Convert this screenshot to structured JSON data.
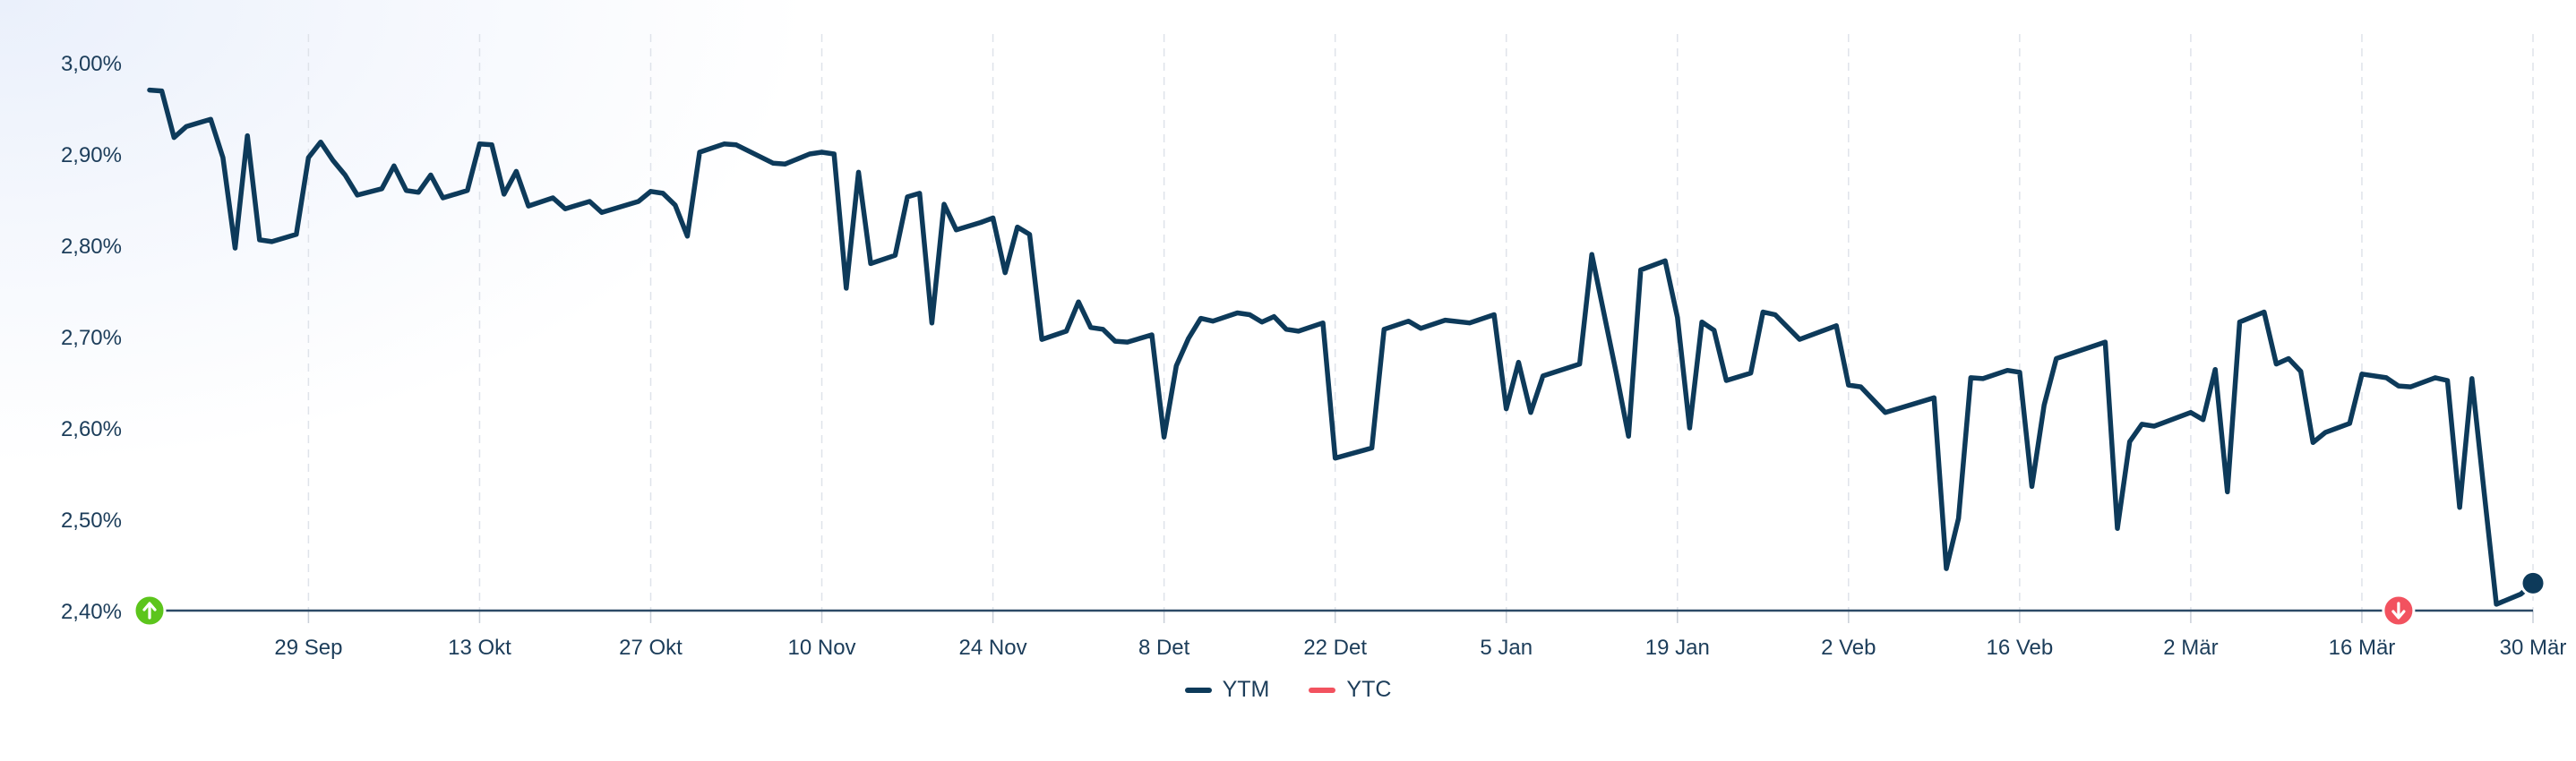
{
  "chart_data": {
    "type": "line",
    "y_tick_labels": [
      "3,00%",
      "2,90%",
      "2,80%",
      "2,70%",
      "2,60%",
      "2,50%",
      "2,40%"
    ],
    "y_ticks": [
      3.0,
      2.9,
      2.8,
      2.7,
      2.6,
      2.5,
      2.4
    ],
    "ylim": [
      2.4,
      3.0
    ],
    "x_tick_labels": [
      "29 Sep",
      "13 Okt",
      "27 Okt",
      "10 Nov",
      "24 Nov",
      "8 Det",
      "22 Det",
      "5 Jan",
      "19 Jan",
      "2 Veb",
      "16 Veb",
      "2 Mär",
      "16 Mär",
      "30 Mär"
    ],
    "x_ticks": [
      13,
      27,
      41,
      55,
      69,
      83,
      97,
      111,
      125,
      139,
      153,
      167,
      181,
      195
    ],
    "xlim": [
      0,
      195
    ],
    "grid": "vertical-dashed",
    "legend_position": "bottom-center",
    "series": [
      {
        "name": "YTM",
        "color": "#0d3a5a",
        "points": [
          [
            0,
            2.97
          ],
          [
            1,
            2.969
          ],
          [
            2,
            2.918
          ],
          [
            3,
            2.93
          ],
          [
            4,
            2.934
          ],
          [
            5,
            2.938
          ],
          [
            6,
            2.896
          ],
          [
            7,
            2.797
          ],
          [
            8,
            2.92
          ],
          [
            9,
            2.806
          ],
          [
            10,
            2.804
          ],
          [
            12,
            2.812
          ],
          [
            13,
            2.896
          ],
          [
            14,
            2.913
          ],
          [
            15,
            2.893
          ],
          [
            16,
            2.877
          ],
          [
            17,
            2.855
          ],
          [
            19,
            2.862
          ],
          [
            20,
            2.887
          ],
          [
            21,
            2.86
          ],
          [
            22,
            2.858
          ],
          [
            23,
            2.877
          ],
          [
            24,
            2.852
          ],
          [
            26,
            2.86
          ],
          [
            27,
            2.911
          ],
          [
            28,
            2.91
          ],
          [
            29,
            2.856
          ],
          [
            30,
            2.881
          ],
          [
            31,
            2.843
          ],
          [
            33,
            2.852
          ],
          [
            34,
            2.84
          ],
          [
            36,
            2.848
          ],
          [
            37,
            2.836
          ],
          [
            40,
            2.848
          ],
          [
            41,
            2.859
          ],
          [
            42,
            2.857
          ],
          [
            43,
            2.844
          ],
          [
            44,
            2.81
          ],
          [
            45,
            2.902
          ],
          [
            47,
            2.911
          ],
          [
            48,
            2.91
          ],
          [
            51,
            2.89
          ],
          [
            52,
            2.889
          ],
          [
            54,
            2.9
          ],
          [
            55,
            2.902
          ],
          [
            56,
            2.9
          ],
          [
            57,
            2.753
          ],
          [
            58,
            2.88
          ],
          [
            59,
            2.78
          ],
          [
            61,
            2.789
          ],
          [
            62,
            2.853
          ],
          [
            63,
            2.857
          ],
          [
            64,
            2.715
          ],
          [
            65,
            2.845
          ],
          [
            66,
            2.817
          ],
          [
            68,
            2.825
          ],
          [
            69,
            2.83
          ],
          [
            70,
            2.77
          ],
          [
            71,
            2.82
          ],
          [
            72,
            2.812
          ],
          [
            73,
            2.697
          ],
          [
            75,
            2.706
          ],
          [
            76,
            2.738
          ],
          [
            77,
            2.71
          ],
          [
            78,
            2.708
          ],
          [
            79,
            2.695
          ],
          [
            80,
            2.694
          ],
          [
            82,
            2.702
          ],
          [
            83,
            2.59
          ],
          [
            84,
            2.668
          ],
          [
            85,
            2.698
          ],
          [
            86,
            2.72
          ],
          [
            87,
            2.717
          ],
          [
            89,
            2.726
          ],
          [
            90,
            2.724
          ],
          [
            91,
            2.716
          ],
          [
            92,
            2.722
          ],
          [
            93,
            2.708
          ],
          [
            94,
            2.706
          ],
          [
            96,
            2.715
          ],
          [
            97,
            2.567
          ],
          [
            100,
            2.578
          ],
          [
            101,
            2.708
          ],
          [
            103,
            2.717
          ],
          [
            104,
            2.709
          ],
          [
            106,
            2.718
          ],
          [
            108,
            2.715
          ],
          [
            110,
            2.724
          ],
          [
            111,
            2.621
          ],
          [
            112,
            2.672
          ],
          [
            113,
            2.617
          ],
          [
            114,
            2.657
          ],
          [
            117,
            2.67
          ],
          [
            118,
            2.79
          ],
          [
            120,
            2.66
          ],
          [
            121,
            2.591
          ],
          [
            122,
            2.773
          ],
          [
            124,
            2.783
          ],
          [
            125,
            2.721
          ],
          [
            126,
            2.6
          ],
          [
            127,
            2.716
          ],
          [
            128,
            2.707
          ],
          [
            129,
            2.652
          ],
          [
            131,
            2.66
          ],
          [
            132,
            2.727
          ],
          [
            133,
            2.724
          ],
          [
            135,
            2.697
          ],
          [
            138,
            2.712
          ],
          [
            139,
            2.647
          ],
          [
            140,
            2.645
          ],
          [
            142,
            2.617
          ],
          [
            146,
            2.633
          ],
          [
            147,
            2.446
          ],
          [
            148,
            2.501
          ],
          [
            149,
            2.655
          ],
          [
            150,
            2.654
          ],
          [
            152,
            2.663
          ],
          [
            153,
            2.661
          ],
          [
            154,
            2.536
          ],
          [
            155,
            2.625
          ],
          [
            156,
            2.676
          ],
          [
            160,
            2.694
          ],
          [
            161,
            2.49
          ],
          [
            162,
            2.585
          ],
          [
            163,
            2.604
          ],
          [
            164,
            2.602
          ],
          [
            167,
            2.617
          ],
          [
            168,
            2.609
          ],
          [
            169,
            2.664
          ],
          [
            170,
            2.53
          ],
          [
            171,
            2.716
          ],
          [
            173,
            2.727
          ],
          [
            174,
            2.67
          ],
          [
            175,
            2.676
          ],
          [
            176,
            2.662
          ],
          [
            177,
            2.584
          ],
          [
            178,
            2.595
          ],
          [
            180,
            2.605
          ],
          [
            181,
            2.659
          ],
          [
            183,
            2.655
          ],
          [
            184,
            2.646
          ],
          [
            185,
            2.645
          ],
          [
            187,
            2.655
          ],
          [
            188,
            2.652
          ],
          [
            189,
            2.513
          ],
          [
            190,
            2.654
          ],
          [
            191,
            2.53
          ],
          [
            192,
            2.407
          ],
          [
            194,
            2.418
          ],
          [
            195,
            2.43
          ]
        ]
      },
      {
        "name": "YTC",
        "color": "#f2525f",
        "points": []
      }
    ],
    "markers": [
      {
        "name": "start-marker",
        "x": 0,
        "y": 2.4,
        "color": "#5cc51c",
        "icon": "arrow-up-icon"
      },
      {
        "name": "call-marker",
        "x": 184,
        "y": 2.4,
        "color": "#f2525f",
        "icon": "arrow-down-icon"
      }
    ]
  },
  "legend": {
    "ytm_label": "YTM",
    "ytc_label": "YTC",
    "ytm_color": "#0d3a5a",
    "ytc_color": "#f2525f"
  }
}
